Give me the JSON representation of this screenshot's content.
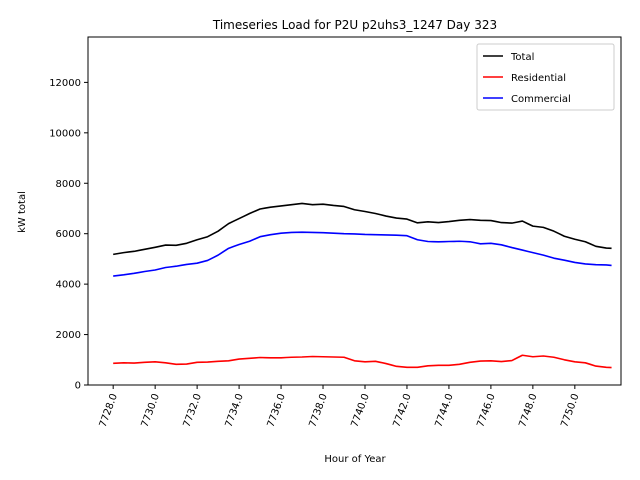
{
  "chart_data": {
    "type": "line",
    "title": "Timeseries Load for P2U p2uhs3_1247  Day 323",
    "xlabel": "Hour of Year",
    "ylabel": "kW total",
    "xlim": [
      7726.8,
      7752.2
    ],
    "ylim": [
      0,
      13800
    ],
    "x_ticks": [
      7728,
      7730,
      7732,
      7734,
      7736,
      7738,
      7740,
      7742,
      7744,
      7746,
      7748,
      7750
    ],
    "x_tick_labels": [
      "7728.0",
      "7730.0",
      "7732.0",
      "7734.0",
      "7736.0",
      "7738.0",
      "7740.0",
      "7742.0",
      "7744.0",
      "7746.0",
      "7748.0",
      "7750.0"
    ],
    "y_ticks": [
      0,
      2000,
      4000,
      6000,
      8000,
      10000,
      12000
    ],
    "y_tick_labels": [
      "0",
      "2000",
      "4000",
      "6000",
      "8000",
      "10000",
      "12000"
    ],
    "legend_position": "top-right",
    "x_start": 7728,
    "x_step": 0.25,
    "series": [
      {
        "name": "Total",
        "color": "#000000",
        "anchors": [
          [
            7728.0,
            5180
          ],
          [
            7728.5,
            5250
          ],
          [
            7729.0,
            5300
          ],
          [
            7729.5,
            5380
          ],
          [
            7730.0,
            5460
          ],
          [
            7730.5,
            5550
          ],
          [
            7731.0,
            5540
          ],
          [
            7731.5,
            5620
          ],
          [
            7732.0,
            5760
          ],
          [
            7732.5,
            5880
          ],
          [
            7733.0,
            6100
          ],
          [
            7733.5,
            6400
          ],
          [
            7734.0,
            6600
          ],
          [
            7734.5,
            6800
          ],
          [
            7735.0,
            6980
          ],
          [
            7735.5,
            7050
          ],
          [
            7736.0,
            7100
          ],
          [
            7736.5,
            7150
          ],
          [
            7737.0,
            7200
          ],
          [
            7737.5,
            7150
          ],
          [
            7738.0,
            7170
          ],
          [
            7738.5,
            7120
          ],
          [
            7739.0,
            7080
          ],
          [
            7739.5,
            6950
          ],
          [
            7740.0,
            6880
          ],
          [
            7740.5,
            6800
          ],
          [
            7741.0,
            6700
          ],
          [
            7741.5,
            6620
          ],
          [
            7742.0,
            6580
          ],
          [
            7742.5,
            6430
          ],
          [
            7743.0,
            6470
          ],
          [
            7743.5,
            6440
          ],
          [
            7744.0,
            6480
          ],
          [
            7744.5,
            6530
          ],
          [
            7745.0,
            6560
          ],
          [
            7745.5,
            6530
          ],
          [
            7746.0,
            6520
          ],
          [
            7746.5,
            6440
          ],
          [
            7747.0,
            6420
          ],
          [
            7747.5,
            6500
          ],
          [
            7748.0,
            6300
          ],
          [
            7748.5,
            6250
          ],
          [
            7749.0,
            6100
          ],
          [
            7749.5,
            5900
          ],
          [
            7750.0,
            5780
          ],
          [
            7750.5,
            5680
          ],
          [
            7751.0,
            5500
          ],
          [
            7751.5,
            5430
          ],
          [
            7751.75,
            5420
          ]
        ]
      },
      {
        "name": "Residential",
        "color": "#ff0000",
        "anchors": [
          [
            7728.0,
            860
          ],
          [
            7728.5,
            880
          ],
          [
            7729.0,
            870
          ],
          [
            7729.5,
            900
          ],
          [
            7730.0,
            920
          ],
          [
            7730.5,
            880
          ],
          [
            7731.0,
            820
          ],
          [
            7731.5,
            830
          ],
          [
            7732.0,
            900
          ],
          [
            7732.5,
            910
          ],
          [
            7733.0,
            940
          ],
          [
            7733.5,
            960
          ],
          [
            7734.0,
            1030
          ],
          [
            7734.5,
            1060
          ],
          [
            7735.0,
            1090
          ],
          [
            7735.5,
            1080
          ],
          [
            7736.0,
            1080
          ],
          [
            7736.5,
            1100
          ],
          [
            7737.0,
            1110
          ],
          [
            7737.5,
            1130
          ],
          [
            7738.0,
            1120
          ],
          [
            7738.5,
            1110
          ],
          [
            7739.0,
            1100
          ],
          [
            7739.5,
            960
          ],
          [
            7740.0,
            920
          ],
          [
            7740.5,
            940
          ],
          [
            7741.0,
            850
          ],
          [
            7741.5,
            740
          ],
          [
            7742.0,
            700
          ],
          [
            7742.5,
            700
          ],
          [
            7743.0,
            760
          ],
          [
            7743.5,
            780
          ],
          [
            7744.0,
            780
          ],
          [
            7744.5,
            820
          ],
          [
            7745.0,
            900
          ],
          [
            7745.5,
            950
          ],
          [
            7746.0,
            960
          ],
          [
            7746.5,
            930
          ],
          [
            7747.0,
            970
          ],
          [
            7747.5,
            1180
          ],
          [
            7748.0,
            1120
          ],
          [
            7748.5,
            1150
          ],
          [
            7749.0,
            1100
          ],
          [
            7749.5,
            1000
          ],
          [
            7750.0,
            920
          ],
          [
            7750.5,
            880
          ],
          [
            7751.0,
            750
          ],
          [
            7751.5,
            700
          ],
          [
            7751.75,
            690
          ]
        ]
      },
      {
        "name": "Commercial",
        "color": "#0000ff",
        "anchors": [
          [
            7728.0,
            4320
          ],
          [
            7728.5,
            4370
          ],
          [
            7729.0,
            4430
          ],
          [
            7729.5,
            4500
          ],
          [
            7730.0,
            4560
          ],
          [
            7730.5,
            4660
          ],
          [
            7731.0,
            4710
          ],
          [
            7731.5,
            4780
          ],
          [
            7732.0,
            4830
          ],
          [
            7732.5,
            4940
          ],
          [
            7733.0,
            5150
          ],
          [
            7733.5,
            5420
          ],
          [
            7734.0,
            5570
          ],
          [
            7734.5,
            5700
          ],
          [
            7735.0,
            5880
          ],
          [
            7735.5,
            5960
          ],
          [
            7736.0,
            6020
          ],
          [
            7736.5,
            6050
          ],
          [
            7737.0,
            6060
          ],
          [
            7737.5,
            6050
          ],
          [
            7738.0,
            6040
          ],
          [
            7738.5,
            6020
          ],
          [
            7739.0,
            6000
          ],
          [
            7739.5,
            5990
          ],
          [
            7740.0,
            5970
          ],
          [
            7740.5,
            5960
          ],
          [
            7741.0,
            5950
          ],
          [
            7741.5,
            5940
          ],
          [
            7742.0,
            5920
          ],
          [
            7742.5,
            5760
          ],
          [
            7743.0,
            5690
          ],
          [
            7743.5,
            5680
          ],
          [
            7744.0,
            5690
          ],
          [
            7744.5,
            5700
          ],
          [
            7745.0,
            5680
          ],
          [
            7745.5,
            5600
          ],
          [
            7746.0,
            5620
          ],
          [
            7746.5,
            5560
          ],
          [
            7747.0,
            5450
          ],
          [
            7747.5,
            5350
          ],
          [
            7748.0,
            5250
          ],
          [
            7748.5,
            5150
          ],
          [
            7749.0,
            5030
          ],
          [
            7749.5,
            4950
          ],
          [
            7750.0,
            4860
          ],
          [
            7750.5,
            4800
          ],
          [
            7751.0,
            4770
          ],
          [
            7751.5,
            4760
          ],
          [
            7751.75,
            4740
          ]
        ]
      }
    ]
  }
}
